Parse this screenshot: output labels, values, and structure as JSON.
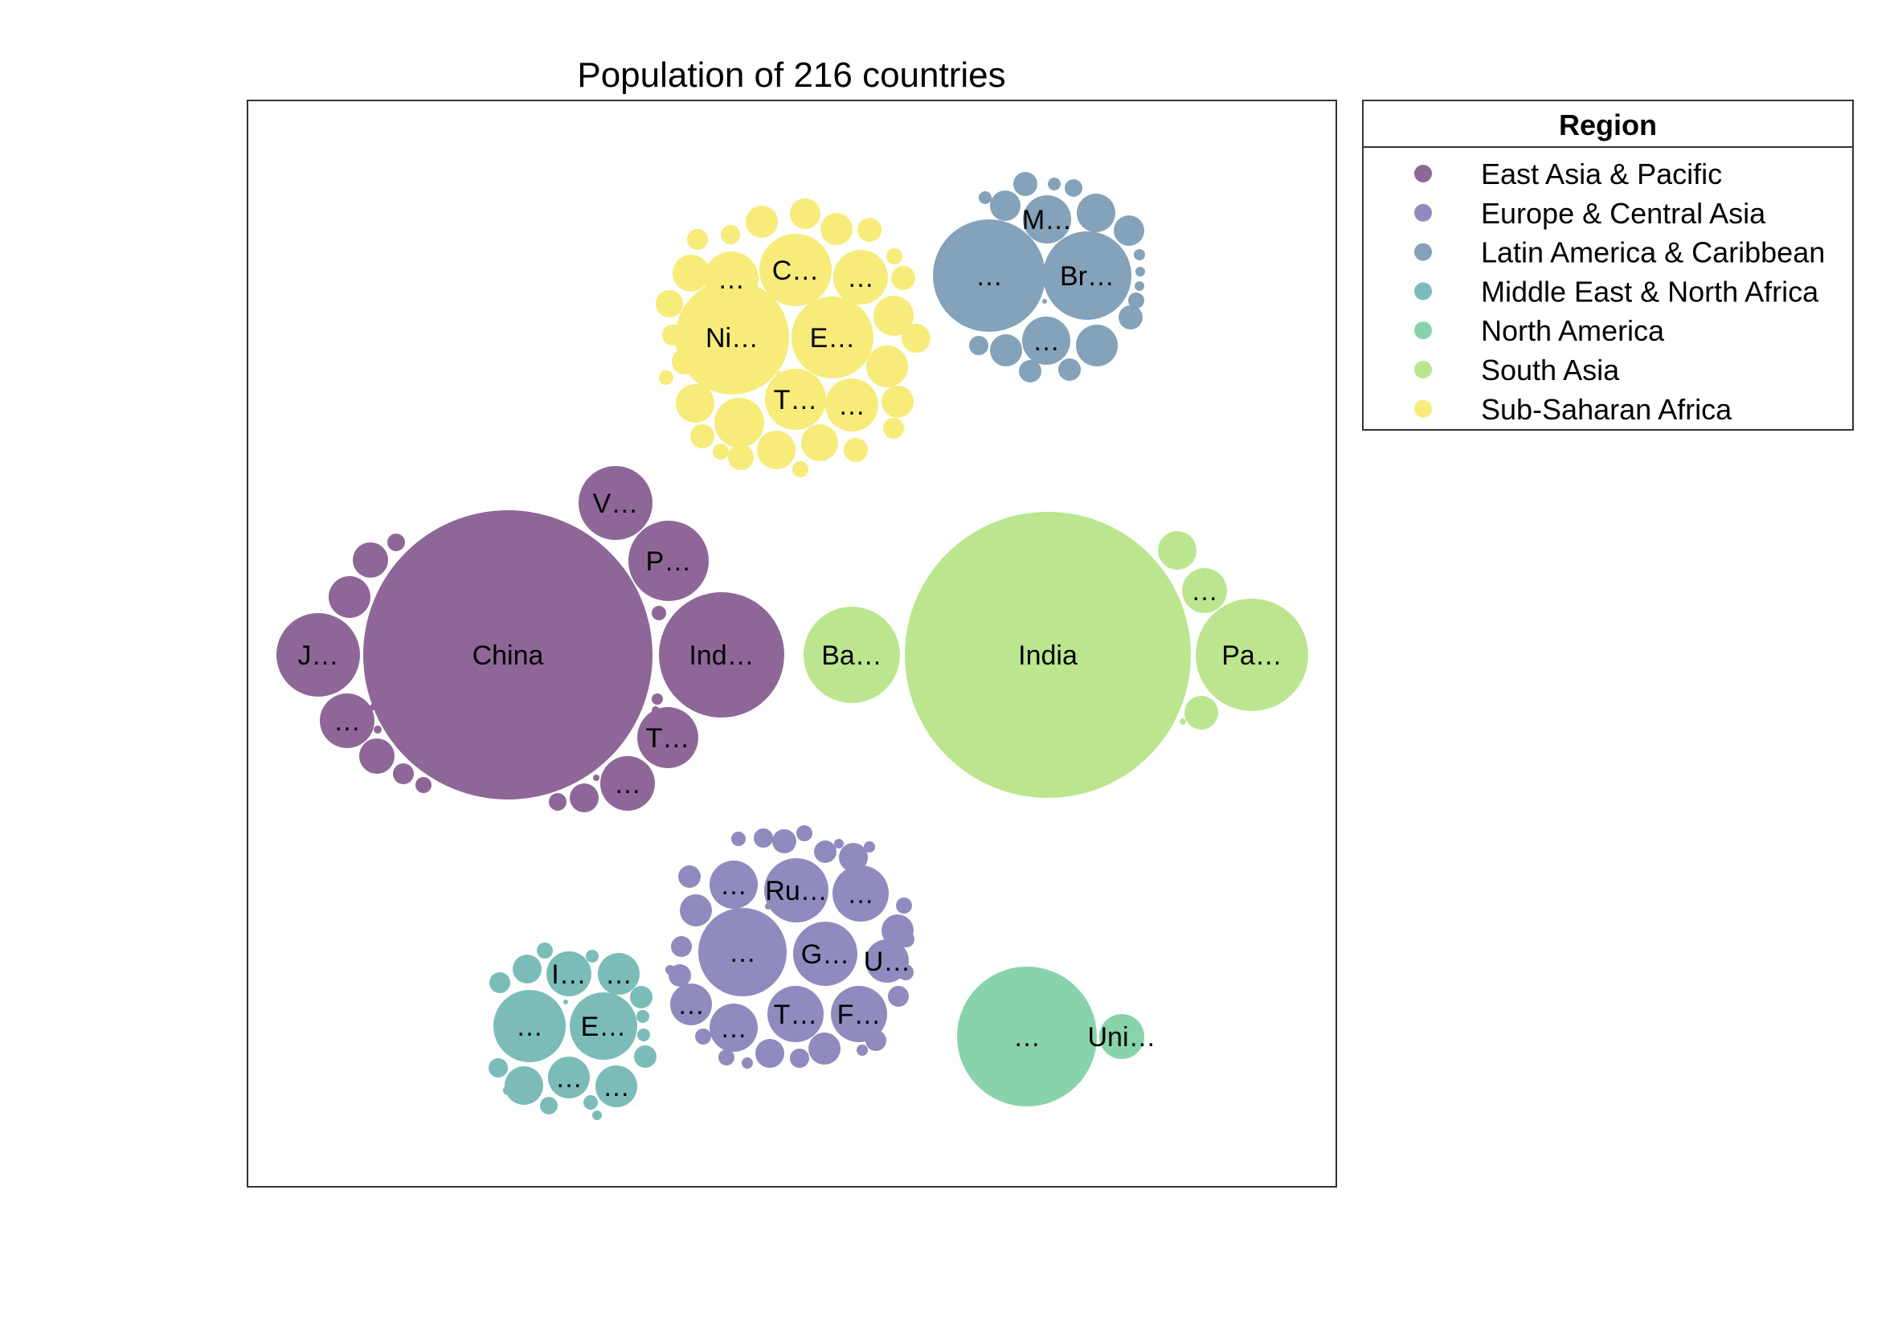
{
  "chart_data": {
    "type": "bubble",
    "title": "Population of 216 countries",
    "legend": {
      "title": "Region",
      "placement": "right",
      "entries": [
        {
          "name": "East Asia & Pacific",
          "color": "#8e6798"
        },
        {
          "name": "Europe & Central Asia",
          "color": "#8f8bbe"
        },
        {
          "name": "Latin America & Caribbean",
          "color": "#84a2b9"
        },
        {
          "name": "Middle East & North Africa",
          "color": "#7bbcb8"
        },
        {
          "name": "North America",
          "color": "#88d3ab"
        },
        {
          "name": "South Asia",
          "color": "#bbe68f"
        },
        {
          "name": "Sub-Saharan Africa",
          "color": "#f7eb7a"
        }
      ]
    },
    "labeled_bubbles": [
      {
        "region": "East Asia & Pacific",
        "label": "China"
      },
      {
        "region": "East Asia & Pacific",
        "label": "Ind…"
      },
      {
        "region": "East Asia & Pacific",
        "label": "J…"
      },
      {
        "region": "East Asia & Pacific",
        "label": "P…"
      },
      {
        "region": "East Asia & Pacific",
        "label": "V…"
      },
      {
        "region": "East Asia & Pacific",
        "label": "T…"
      },
      {
        "region": "East Asia & Pacific",
        "label": "…"
      },
      {
        "region": "East Asia & Pacific",
        "label": "…"
      },
      {
        "region": "South Asia",
        "label": "India"
      },
      {
        "region": "South Asia",
        "label": "Pa…"
      },
      {
        "region": "South Asia",
        "label": "Ba…"
      },
      {
        "region": "South Asia",
        "label": "…"
      },
      {
        "region": "Sub-Saharan Africa",
        "label": "Ni…"
      },
      {
        "region": "Sub-Saharan Africa",
        "label": "E…"
      },
      {
        "region": "Sub-Saharan Africa",
        "label": "C…"
      },
      {
        "region": "Sub-Saharan Africa",
        "label": "T…"
      },
      {
        "region": "Sub-Saharan Africa",
        "label": "…"
      },
      {
        "region": "Sub-Saharan Africa",
        "label": "…"
      },
      {
        "region": "Sub-Saharan Africa",
        "label": "…"
      },
      {
        "region": "Sub-Saharan Africa",
        "label": "…"
      },
      {
        "region": "Latin America & Caribbean",
        "label": "Br…"
      },
      {
        "region": "Latin America & Caribbean",
        "label": "M…"
      },
      {
        "region": "Latin America & Caribbean",
        "label": "…"
      },
      {
        "region": "Latin America & Caribbean",
        "label": "…"
      },
      {
        "region": "Europe & Central Asia",
        "label": "Ru…"
      },
      {
        "region": "Europe & Central Asia",
        "label": "G…"
      },
      {
        "region": "Europe & Central Asia",
        "label": "T…"
      },
      {
        "region": "Europe & Central Asia",
        "label": "F…"
      },
      {
        "region": "Europe & Central Asia",
        "label": "U…"
      },
      {
        "region": "Europe & Central Asia",
        "label": "…"
      },
      {
        "region": "Europe & Central Asia",
        "label": "…"
      },
      {
        "region": "Europe & Central Asia",
        "label": "…"
      },
      {
        "region": "Europe & Central Asia",
        "label": "…"
      },
      {
        "region": "Europe & Central Asia",
        "label": "…"
      },
      {
        "region": "Middle East & North Africa",
        "label": "E…"
      },
      {
        "region": "Middle East & North Africa",
        "label": "I…"
      },
      {
        "region": "Middle East & North Africa",
        "label": "…"
      },
      {
        "region": "Middle East & North Africa",
        "label": "…"
      },
      {
        "region": "Middle East & North Africa",
        "label": "…"
      },
      {
        "region": "Middle East & North Africa",
        "label": "…"
      },
      {
        "region": "North America",
        "label": "Uni…"
      },
      {
        "region": "North America",
        "label": "…"
      }
    ]
  }
}
